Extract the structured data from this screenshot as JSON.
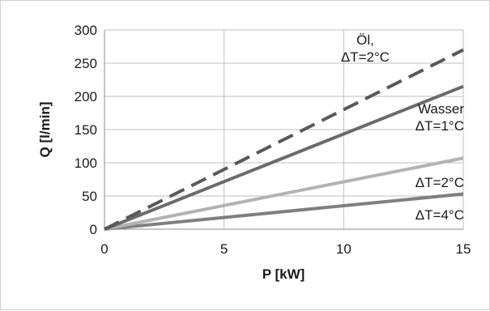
{
  "chart_data": {
    "type": "line",
    "xlabel": "P [kW]",
    "ylabel": "Q [l/min]",
    "xlim": [
      0,
      15
    ],
    "ylim": [
      0,
      300
    ],
    "xticks": [
      "0",
      "5",
      "10",
      "15"
    ],
    "yticks": [
      "0",
      "50",
      "100",
      "150",
      "200",
      "250",
      "300"
    ],
    "grid": true,
    "legend": "none",
    "series": [
      {
        "name": "Öl, ΔT=2°C",
        "x": [
          0,
          15
        ],
        "y": [
          0,
          270
        ],
        "style": "dashed",
        "color": "#595959"
      },
      {
        "name": "Wasser ΔT=1°C",
        "x": [
          0,
          15
        ],
        "y": [
          0,
          215
        ],
        "style": "solid",
        "color": "#6b6b6b"
      },
      {
        "name": "ΔT=2°C",
        "x": [
          0,
          15
        ],
        "y": [
          0,
          107
        ],
        "style": "solid",
        "color": "#b3b3b3"
      },
      {
        "name": "ΔT=4°C",
        "x": [
          0,
          15
        ],
        "y": [
          0,
          53
        ],
        "style": "solid",
        "color": "#7f7f7f"
      }
    ],
    "annotations": [
      {
        "lines": [
          "Öl,",
          "ΔT=2°C"
        ],
        "series": 0
      },
      {
        "lines": [
          "Wasser",
          "ΔT=1°C"
        ],
        "series": 1
      },
      {
        "lines": [
          "ΔT=2°C"
        ],
        "series": 2
      },
      {
        "lines": [
          "ΔT=4°C"
        ],
        "series": 3
      }
    ]
  }
}
